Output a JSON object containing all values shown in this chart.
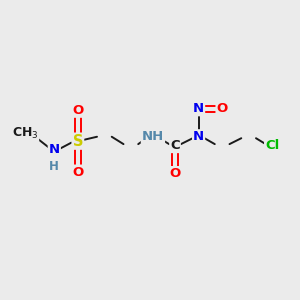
{
  "bg_color": "#ebebeb",
  "bond_color": "#1a1a1a",
  "atom_colors": {
    "S": "#cccc00",
    "N": "#0000ee",
    "O": "#ff0000",
    "Cl": "#00bb00",
    "H": "#5588aa",
    "C": "#1a1a1a"
  },
  "font_size": 9.5,
  "fig_width": 3.0,
  "fig_height": 3.0,
  "dpi": 100
}
